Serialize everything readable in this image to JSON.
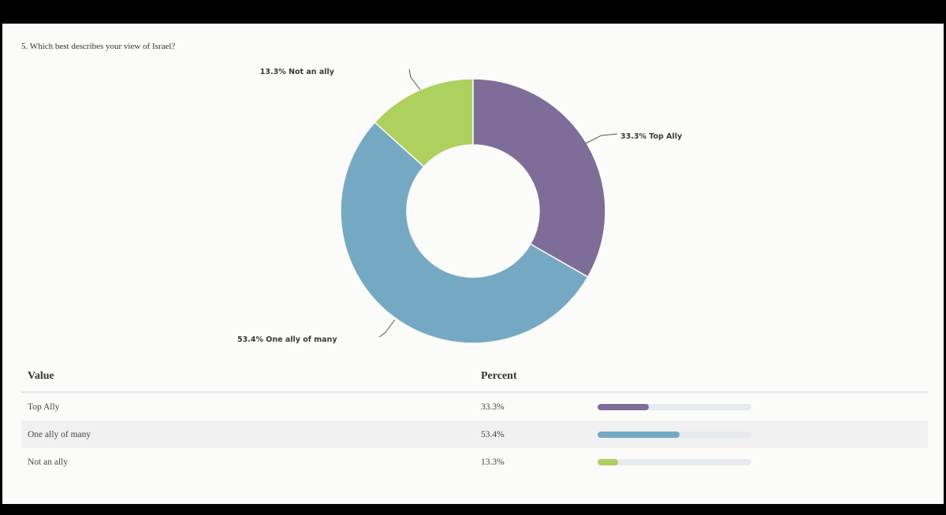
{
  "question": "5. Which best describes your view of Israel?",
  "colors": {
    "top_ally": "#7e6d98",
    "one_ally_of_many": "#75a9c3",
    "not_an_ally": "#aed05e"
  },
  "chart_data": {
    "type": "pie",
    "donut": true,
    "title": "5. Which best describes your view of Israel?",
    "slices": [
      {
        "label": "Top Ally",
        "value": 33.3,
        "display": "33.3% Top Ally",
        "color": "#7e6d98"
      },
      {
        "label": "One ally of many",
        "value": 53.4,
        "display": "53.4% One ally of many",
        "color": "#75a9c3"
      },
      {
        "label": "Not an ally",
        "value": 13.3,
        "display": "13.3% Not an ally",
        "color": "#aed05e"
      }
    ]
  },
  "table": {
    "headers": {
      "value": "Value",
      "percent": "Percent"
    },
    "rows": [
      {
        "value": "Top Ally",
        "percent": "33.3%",
        "fraction": 0.333,
        "color": "#7e6d98"
      },
      {
        "value": "One ally of many",
        "percent": "53.4%",
        "fraction": 0.534,
        "color": "#75a9c3"
      },
      {
        "value": "Not an ally",
        "percent": "13.3%",
        "fraction": 0.133,
        "color": "#aed05e"
      }
    ]
  }
}
